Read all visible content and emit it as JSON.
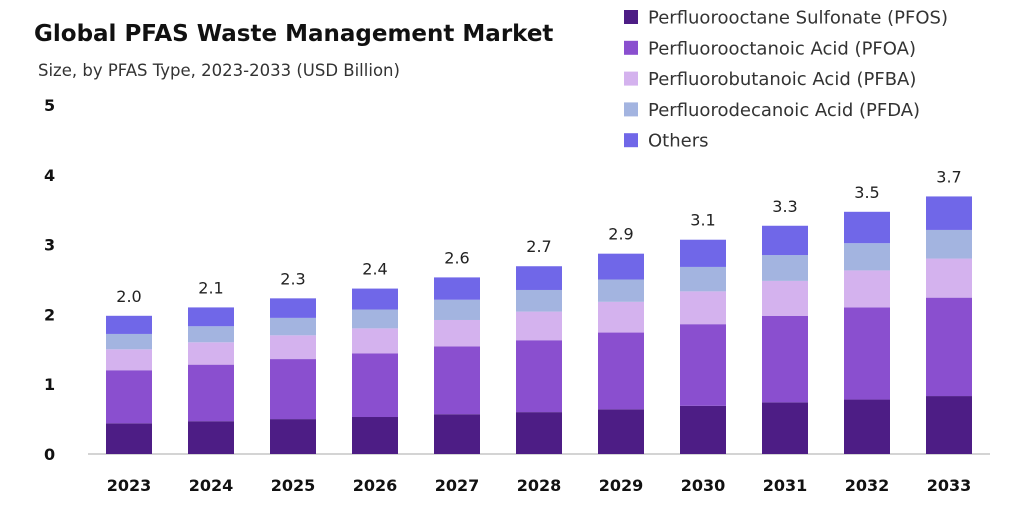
{
  "chart_data": {
    "type": "bar",
    "stacked": true,
    "title": "Global PFAS Waste Management Market",
    "subtitle": "Size, by PFAS Type, 2023-2033 (USD Billion)",
    "xlabel": "",
    "ylabel": "",
    "ylim": [
      0,
      5
    ],
    "yticks": [
      0,
      1,
      2,
      3,
      4,
      5
    ],
    "grid": false,
    "legend_position": "top-right",
    "categories": [
      "2023",
      "2024",
      "2025",
      "2026",
      "2027",
      "2028",
      "2029",
      "2030",
      "2031",
      "2032",
      "2033"
    ],
    "totals": [
      "2.0",
      "2.1",
      "2.3",
      "2.4",
      "2.6",
      "2.7",
      "2.9",
      "3.1",
      "3.3",
      "3.5",
      "3.7"
    ],
    "series": [
      {
        "name": "Perfluorooctane Sulfonate (PFOS)",
        "color": "#4d1d85",
        "values": [
          0.44,
          0.47,
          0.5,
          0.53,
          0.57,
          0.6,
          0.64,
          0.69,
          0.74,
          0.78,
          0.83
        ]
      },
      {
        "name": "Perfluorooctanoic Acid (PFOA)",
        "color": "#8a4fcf",
        "values": [
          0.76,
          0.81,
          0.86,
          0.91,
          0.97,
          1.03,
          1.1,
          1.17,
          1.24,
          1.32,
          1.41
        ]
      },
      {
        "name": "Perfluorobutanoic Acid (PFBA)",
        "color": "#d4b2ee",
        "values": [
          0.3,
          0.32,
          0.34,
          0.36,
          0.38,
          0.41,
          0.44,
          0.47,
          0.5,
          0.53,
          0.56
        ]
      },
      {
        "name": "Perfluorodecanoic Acid (PFDA)",
        "color": "#a3b4e0",
        "values": [
          0.22,
          0.23,
          0.25,
          0.27,
          0.29,
          0.31,
          0.32,
          0.35,
          0.37,
          0.39,
          0.41
        ]
      },
      {
        "name": "Others",
        "color": "#7067e8",
        "values": [
          0.26,
          0.27,
          0.28,
          0.3,
          0.32,
          0.34,
          0.37,
          0.39,
          0.42,
          0.45,
          0.48
        ]
      }
    ]
  }
}
